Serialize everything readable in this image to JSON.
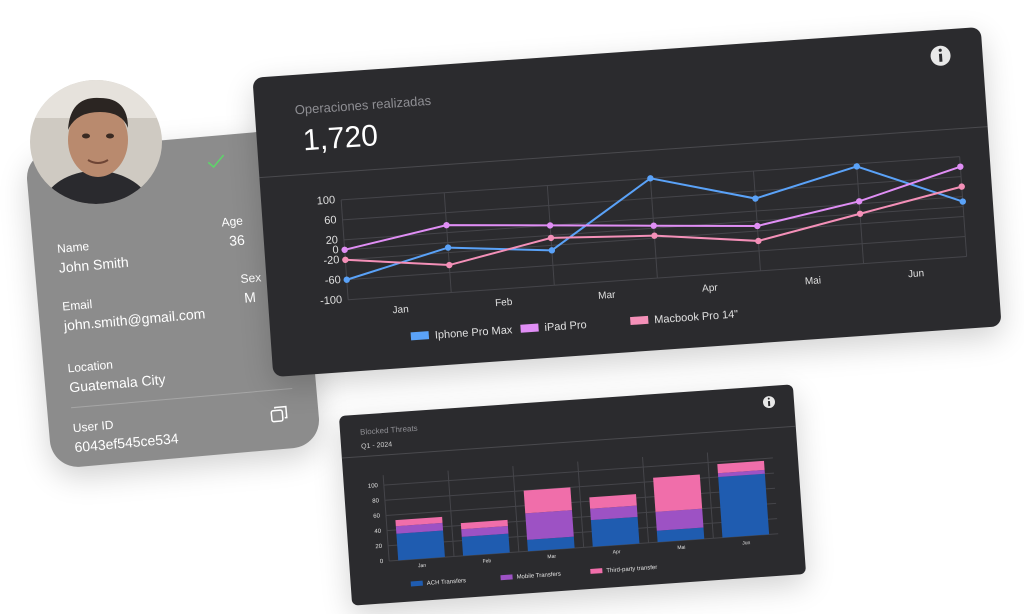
{
  "profile_card": {
    "name_label": "Name",
    "name": "John Smith",
    "age_label": "Age",
    "age": "36",
    "email_label": "Email",
    "email": "john.smith@gmail.com",
    "sex_label": "Sex",
    "sex": "M",
    "location_label": "Location",
    "location": "Guatemala City",
    "user_id_label": "User ID",
    "user_id": "6043ef545ce534"
  },
  "chart_data": [
    {
      "type": "line",
      "title": "Operaciones realizadas",
      "total": "1,720",
      "categories": [
        "Jan",
        "Feb",
        "Mar",
        "Apr",
        "Mai",
        "Jun",
        null
      ],
      "series": [
        {
          "name": "Iphone Pro Max",
          "color": "#5aa2f8",
          "values": [
            -60,
            -10,
            -30,
            100,
            45,
            95,
            10
          ]
        },
        {
          "name": "iPad Pro",
          "color": "#e08ef5",
          "values": [
            0,
            35,
            20,
            5,
            -10,
            25,
            80
          ]
        },
        {
          "name": "Macbook Pro 14\"",
          "color": "#f490b8",
          "values": [
            -20,
            -45,
            -5,
            -15,
            -40,
            0,
            40
          ]
        }
      ],
      "ylim": [
        -100,
        100
      ],
      "yticks": [
        100,
        60,
        20,
        0,
        -20,
        -60,
        -100
      ],
      "grid": true,
      "legend": "bottom"
    },
    {
      "type": "bar",
      "stacked": true,
      "title": "Blocked Threats",
      "subtitle": "Q1 - 2024",
      "categories": [
        "Jan",
        "Feb",
        "Mar",
        "Apr",
        "Mai",
        "Jun"
      ],
      "series": [
        {
          "name": "ACH Transfers",
          "color": "#1f5cb0",
          "values": [
            35,
            25,
            15,
            35,
            15,
            80
          ]
        },
        {
          "name": "Mobile Transfers",
          "color": "#9d52c4",
          "values": [
            10,
            10,
            35,
            15,
            25,
            5
          ]
        },
        {
          "name": "Third-party transfer",
          "color": "#f06eaa",
          "values": [
            8,
            8,
            30,
            15,
            45,
            12
          ]
        }
      ],
      "ylim": [
        0,
        100
      ],
      "yticks": [
        0,
        20,
        40,
        60,
        80,
        100
      ],
      "grid": true,
      "legend": "bottom"
    }
  ]
}
